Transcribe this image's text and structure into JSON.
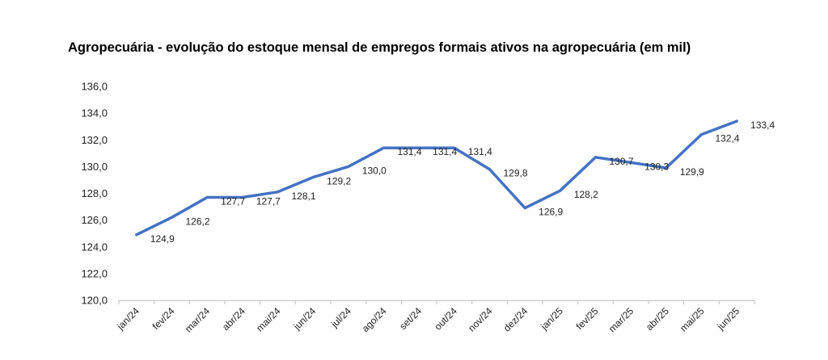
{
  "chart_data": {
    "type": "line",
    "title": "Agropecuária - evolução do estoque mensal de empregos formais ativos na agropecuária (em mil)",
    "xlabel": "",
    "ylabel": "",
    "categories": [
      "jan/24",
      "fev/24",
      "mar/24",
      "abr/24",
      "mai/24",
      "jun/24",
      "jul/24",
      "ago/24",
      "set/24",
      "out/24",
      "nov/24",
      "dez/24",
      "jan/25",
      "fev/25",
      "mar/25",
      "abr/25",
      "mai/25",
      "jun/25"
    ],
    "series": [
      {
        "values": [
          124.9,
          126.2,
          127.7,
          127.7,
          128.1,
          129.2,
          130.0,
          131.4,
          131.4,
          131.4,
          129.8,
          126.9,
          128.2,
          130.7,
          130.3,
          129.9,
          132.4,
          133.4
        ],
        "labels": [
          "124,9",
          "126,2",
          "127,7",
          "127,7",
          "128,1",
          "129,2",
          "130,0",
          "131,4",
          "131,4",
          "131,4",
          "129,8",
          "126,9",
          "128,2",
          "130,7",
          "130,3",
          "129,9",
          "132,4",
          "133,4"
        ],
        "color": "#4472C4"
      }
    ],
    "ylim": [
      120,
      136
    ],
    "ytick_step": 2,
    "ytick_labels": [
      "120,0",
      "122,0",
      "124,0",
      "126,0",
      "128,0",
      "130,0",
      "132,0",
      "134,0",
      "136,0"
    ],
    "grid": false,
    "legend": "none"
  }
}
